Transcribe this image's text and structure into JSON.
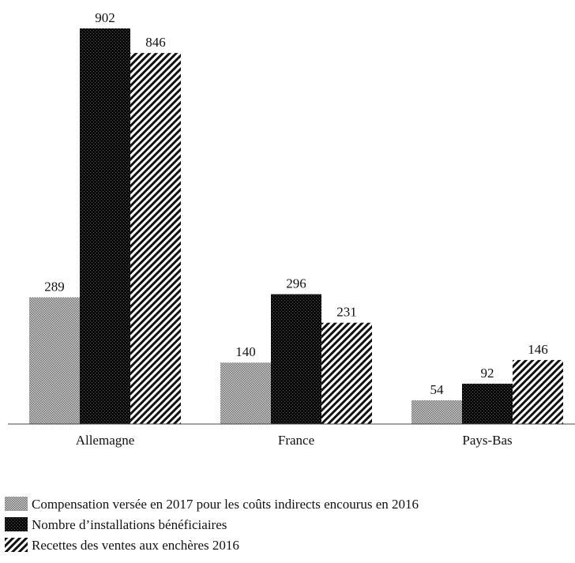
{
  "chart_data": {
    "type": "bar",
    "title": "",
    "xlabel": "",
    "ylabel": "",
    "categories": [
      "Allemagne",
      "France",
      "Pays-Bas"
    ],
    "ylim": [
      0,
      902
    ],
    "grid": false,
    "legend_position": "bottom",
    "series": [
      {
        "name": "Compensation versée en 2017 pour les coûts indirects encourus en 2016",
        "pattern": "dotted-gray",
        "values": [
          289,
          140,
          54
        ],
        "labels": [
          "289",
          "140",
          "54"
        ]
      },
      {
        "name": "Nombre d’installations bénéficiaires",
        "pattern": "checkered-black",
        "values": [
          902,
          296,
          92
        ],
        "labels": [
          "902",
          "296",
          "92"
        ]
      },
      {
        "name": "Recettes des ventes aux enchères 2016",
        "pattern": "diagonal-hatch",
        "values": [
          846,
          231,
          146
        ],
        "labels": [
          "846",
          "231",
          "146"
        ]
      }
    ],
    "colors": {
      "text": "#111111",
      "gray": "#8c8c8c",
      "dark": "#111111",
      "axis": "#444444"
    }
  }
}
